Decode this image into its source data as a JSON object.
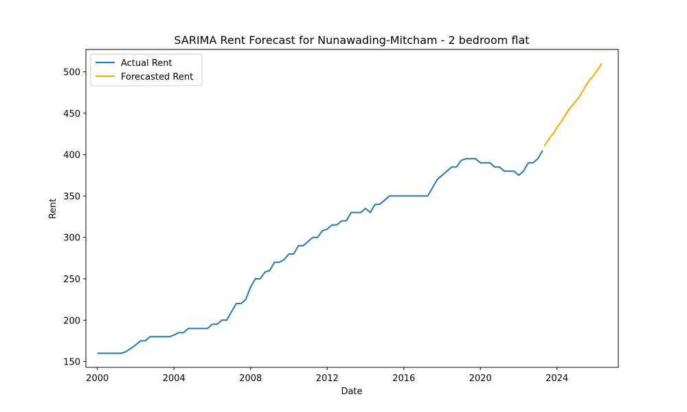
{
  "chart_data": {
    "type": "line",
    "title": "SARIMA Rent Forecast for Nunawading-Mitcham - 2 bedroom flat",
    "xlabel": "Date",
    "ylabel": "Rent",
    "xlim": [
      1999.4,
      2027.2
    ],
    "ylim": [
      143,
      527
    ],
    "x_ticks": [
      2000,
      2004,
      2008,
      2012,
      2016,
      2020,
      2024
    ],
    "y_ticks": [
      150,
      200,
      250,
      300,
      350,
      400,
      450,
      500
    ],
    "grid": false,
    "legend_position": "top-left",
    "series": [
      {
        "name": "Actual Rent",
        "color": "#1f77b4",
        "points": [
          [
            2000.0,
            160
          ],
          [
            2001.25,
            160
          ],
          [
            2001.5,
            162
          ],
          [
            2001.75,
            166
          ],
          [
            2002.0,
            170
          ],
          [
            2002.25,
            175
          ],
          [
            2002.5,
            175
          ],
          [
            2002.75,
            180
          ],
          [
            2003.0,
            180
          ],
          [
            2003.75,
            180
          ],
          [
            2004.0,
            182
          ],
          [
            2004.25,
            185
          ],
          [
            2004.5,
            185
          ],
          [
            2004.75,
            190
          ],
          [
            2005.0,
            190
          ],
          [
            2005.75,
            190
          ],
          [
            2006.0,
            195
          ],
          [
            2006.25,
            195
          ],
          [
            2006.5,
            200
          ],
          [
            2006.75,
            200
          ],
          [
            2007.0,
            210
          ],
          [
            2007.25,
            220
          ],
          [
            2007.5,
            220
          ],
          [
            2007.75,
            225
          ],
          [
            2008.0,
            240
          ],
          [
            2008.25,
            250
          ],
          [
            2008.5,
            250
          ],
          [
            2008.75,
            258
          ],
          [
            2009.0,
            260
          ],
          [
            2009.25,
            270
          ],
          [
            2009.5,
            270
          ],
          [
            2009.75,
            273
          ],
          [
            2010.0,
            280
          ],
          [
            2010.25,
            280
          ],
          [
            2010.5,
            290
          ],
          [
            2010.75,
            290
          ],
          [
            2011.0,
            295
          ],
          [
            2011.25,
            300
          ],
          [
            2011.5,
            300
          ],
          [
            2011.75,
            308
          ],
          [
            2012.0,
            310
          ],
          [
            2012.25,
            315
          ],
          [
            2012.5,
            315
          ],
          [
            2012.75,
            320
          ],
          [
            2013.0,
            320
          ],
          [
            2013.25,
            330
          ],
          [
            2013.5,
            330
          ],
          [
            2013.75,
            330
          ],
          [
            2014.0,
            335
          ],
          [
            2014.25,
            330
          ],
          [
            2014.5,
            340
          ],
          [
            2014.75,
            340
          ],
          [
            2015.0,
            345
          ],
          [
            2015.25,
            350
          ],
          [
            2015.5,
            350
          ],
          [
            2016.0,
            350
          ],
          [
            2016.5,
            350
          ],
          [
            2017.0,
            350
          ],
          [
            2017.25,
            350
          ],
          [
            2017.5,
            360
          ],
          [
            2017.75,
            370
          ],
          [
            2018.0,
            375
          ],
          [
            2018.25,
            380
          ],
          [
            2018.5,
            385
          ],
          [
            2018.75,
            385
          ],
          [
            2019.0,
            393
          ],
          [
            2019.25,
            395
          ],
          [
            2019.5,
            395
          ],
          [
            2019.75,
            395
          ],
          [
            2020.0,
            390
          ],
          [
            2020.25,
            390
          ],
          [
            2020.5,
            390
          ],
          [
            2020.75,
            385
          ],
          [
            2021.0,
            385
          ],
          [
            2021.25,
            380
          ],
          [
            2021.5,
            380
          ],
          [
            2021.75,
            380
          ],
          [
            2022.0,
            375
          ],
          [
            2022.25,
            380
          ],
          [
            2022.5,
            390
          ],
          [
            2022.75,
            390
          ],
          [
            2023.0,
            395
          ],
          [
            2023.25,
            405
          ]
        ]
      },
      {
        "name": "Forecasted Rent",
        "color": "#ffa500",
        "points": [
          [
            2023.33,
            410
          ],
          [
            2023.5,
            416
          ],
          [
            2023.67,
            422
          ],
          [
            2023.83,
            426
          ],
          [
            2024.0,
            433
          ],
          [
            2024.17,
            438
          ],
          [
            2024.33,
            444
          ],
          [
            2024.5,
            450
          ],
          [
            2024.67,
            456
          ],
          [
            2024.83,
            460
          ],
          [
            2025.0,
            465
          ],
          [
            2025.17,
            470
          ],
          [
            2025.33,
            476
          ],
          [
            2025.5,
            483
          ],
          [
            2025.67,
            489
          ],
          [
            2025.83,
            493
          ],
          [
            2026.0,
            499
          ],
          [
            2026.17,
            504
          ],
          [
            2026.33,
            510
          ]
        ]
      }
    ]
  }
}
